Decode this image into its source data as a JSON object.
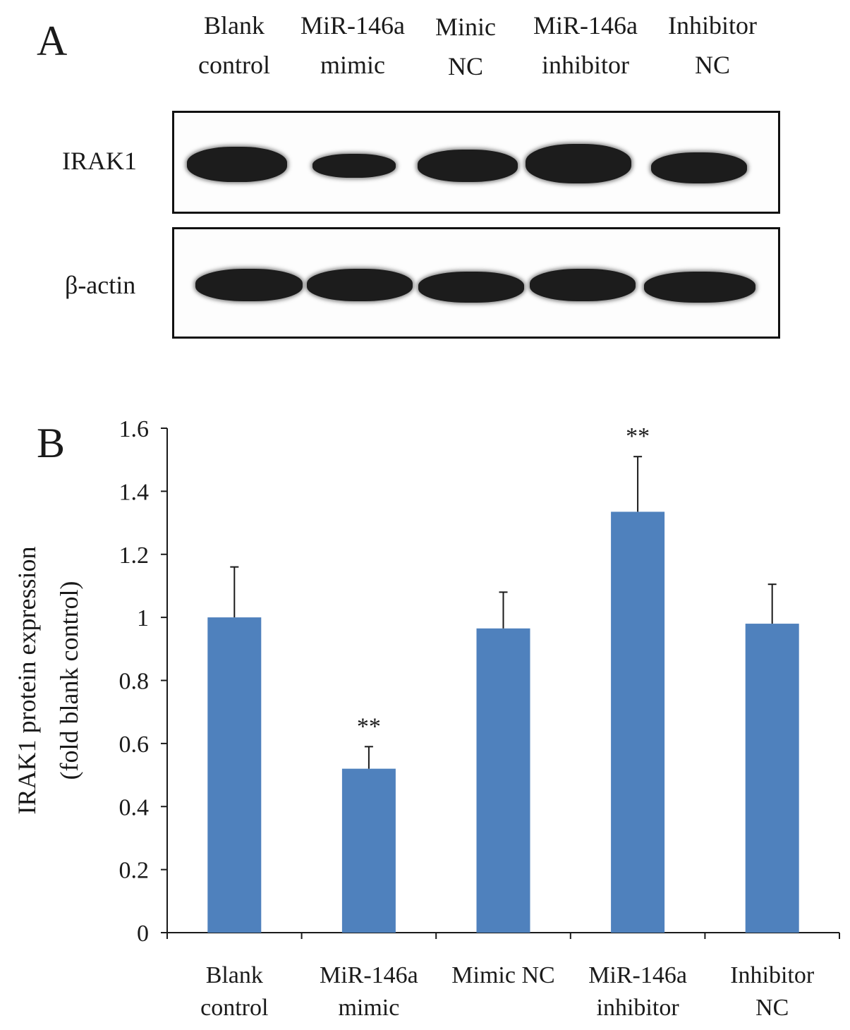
{
  "panelA": {
    "letter": "A",
    "lanes": [
      {
        "line1": "Blank",
        "line2": "control"
      },
      {
        "line1": "MiR-146a",
        "line2": "mimic"
      },
      {
        "line1": "Minic",
        "line2": "NC"
      },
      {
        "line1": "MiR-146a",
        "line2": "inhibitor"
      },
      {
        "line1": "Inhibitor",
        "line2": "NC"
      }
    ],
    "rows": {
      "irak1": "IRAK1",
      "actin": "β-actin"
    }
  },
  "panelB": {
    "letter": "B"
  },
  "chart_data": {
    "type": "bar",
    "categories": [
      [
        "Blank",
        "control"
      ],
      [
        "MiR-146a",
        "mimic"
      ],
      [
        "Mimic NC"
      ],
      [
        "MiR-146a",
        "inhibitor"
      ],
      [
        "Inhibitor",
        "NC"
      ]
    ],
    "values": [
      1.0,
      0.52,
      0.965,
      1.335,
      0.98
    ],
    "errors": [
      0.16,
      0.07,
      0.115,
      0.175,
      0.125
    ],
    "significance": [
      "",
      "**",
      "",
      "**",
      ""
    ],
    "ylabel_line1": "IRAK1 protein expression",
    "ylabel_line2": "(fold blank control)",
    "xlabel": "",
    "ylim": [
      0,
      1.6
    ],
    "yticks": [
      "0",
      "0.2",
      "0.4",
      "0.6",
      "0.8",
      "1",
      "1.2",
      "1.4",
      "1.6"
    ],
    "bar_color": "#4f81bd",
    "grid": false,
    "legend": "none"
  }
}
